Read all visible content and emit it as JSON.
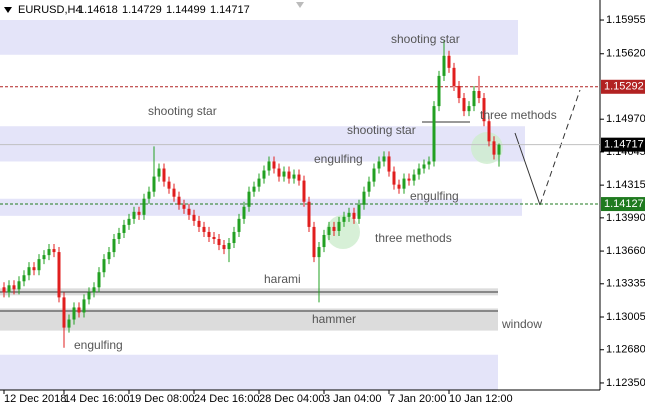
{
  "chart_data": {
    "type": "candlestick",
    "symbol": "EURUSD,H4",
    "header_prices": [
      1.14618,
      1.14729,
      1.14499,
      1.14717
    ],
    "up_color": "#22a022",
    "down_color": "#e01e1e",
    "categories": [
      "12 Dec 2018",
      null,
      null,
      null,
      null,
      null,
      null,
      null,
      null,
      null,
      null,
      null,
      "14 Dec 16:00",
      null,
      null,
      null,
      null,
      null,
      null,
      null,
      null,
      null,
      null,
      null,
      null,
      "19 Dec 08:00",
      null,
      null,
      null,
      null,
      null,
      null,
      null,
      null,
      null,
      null,
      null,
      null,
      "24 Dec 16:00",
      null,
      null,
      null,
      null,
      null,
      null,
      null,
      null,
      null,
      null,
      null,
      null,
      "28 Dec 04:00",
      null,
      null,
      null,
      null,
      null,
      null,
      null,
      null,
      null,
      null,
      null,
      null,
      "3 Jan 04:00",
      null,
      null,
      null,
      null,
      null,
      null,
      null,
      null,
      null,
      null,
      null,
      null,
      "7 Jan 20:00",
      null,
      null,
      null,
      null,
      null,
      null,
      null,
      null,
      null,
      null,
      null,
      "10 Jan 12:00",
      null,
      null,
      null,
      null,
      null,
      null,
      null,
      null,
      null,
      null
    ],
    "open": [
      1.133,
      1.1325,
      1.1332,
      1.1328,
      1.1336,
      1.1342,
      1.135,
      1.1347,
      1.1358,
      1.1362,
      1.1368,
      1.1365,
      1.132,
      1.129,
      1.1298,
      1.131,
      1.1305,
      1.1318,
      1.1325,
      1.133,
      1.1345,
      1.1358,
      1.1365,
      1.1378,
      1.1384,
      1.1392,
      1.1398,
      1.1405,
      1.1402,
      1.1418,
      1.1425,
      1.144,
      1.1448,
      1.1435,
      1.1428,
      1.142,
      1.1412,
      1.1408,
      1.1402,
      1.1396,
      1.139,
      1.1385,
      1.138,
      1.1378,
      1.1372,
      1.1368,
      1.1374,
      1.1385,
      1.1398,
      1.141,
      1.1425,
      1.143,
      1.1438,
      1.1446,
      1.1455,
      1.1448,
      1.144,
      1.1445,
      1.1438,
      1.1442,
      1.1436,
      1.1415,
      1.139,
      1.136,
      1.137,
      1.1382,
      1.139,
      1.1386,
      1.1395,
      1.14,
      1.1404,
      1.1398,
      1.1412,
      1.1425,
      1.1435,
      1.1448,
      1.1455,
      1.146,
      1.1445,
      1.1432,
      1.1428,
      1.1438,
      1.1436,
      1.1442,
      1.1448,
      1.1452,
      1.1455,
      1.151,
      1.154,
      1.156,
      1.1548,
      1.153,
      1.1518,
      1.1505,
      1.151,
      1.1525,
      1.1518,
      1.1495,
      1.1475,
      1.14618
    ],
    "high": [
      1.1335,
      1.1337,
      1.1337,
      1.1341,
      1.1347,
      1.1355,
      1.1355,
      1.1363,
      1.1367,
      1.1373,
      1.1373,
      1.137,
      1.1325,
      1.1303,
      1.1315,
      1.1315,
      1.1323,
      1.133,
      1.1335,
      1.135,
      1.1363,
      1.137,
      1.1383,
      1.1389,
      1.1397,
      1.1403,
      1.141,
      1.141,
      1.1423,
      1.143,
      1.147,
      1.1453,
      1.1453,
      1.144,
      1.1433,
      1.1425,
      1.1417,
      1.1413,
      1.1407,
      1.1401,
      1.1395,
      1.139,
      1.1385,
      1.1383,
      1.1377,
      1.1379,
      1.139,
      1.1403,
      1.1415,
      1.143,
      1.1435,
      1.1443,
      1.1451,
      1.146,
      1.146,
      1.1453,
      1.145,
      1.145,
      1.1447,
      1.1447,
      1.1441,
      1.142,
      1.1395,
      1.1375,
      1.1387,
      1.1395,
      1.1395,
      1.14,
      1.1405,
      1.1409,
      1.1409,
      1.1417,
      1.143,
      1.144,
      1.1453,
      1.146,
      1.1465,
      1.1465,
      1.145,
      1.1437,
      1.1443,
      1.1443,
      1.1447,
      1.1453,
      1.1457,
      1.146,
      1.1515,
      1.1545,
      1.1575,
      1.1565,
      1.1553,
      1.1535,
      1.1523,
      1.1515,
      1.153,
      1.154,
      1.1523,
      1.15,
      1.148,
      1.14729
    ],
    "low": [
      1.132,
      1.132,
      1.1323,
      1.1323,
      1.1331,
      1.1337,
      1.1342,
      1.1342,
      1.1353,
      1.1357,
      1.136,
      1.1315,
      1.127,
      1.1285,
      1.1293,
      1.13,
      1.13,
      1.1313,
      1.132,
      1.1325,
      1.134,
      1.1353,
      1.136,
      1.1373,
      1.1379,
      1.1387,
      1.1393,
      1.1397,
      1.1397,
      1.1413,
      1.142,
      1.1435,
      1.143,
      1.1423,
      1.1415,
      1.1407,
      1.1403,
      1.1397,
      1.1391,
      1.1385,
      1.138,
      1.1375,
      1.1373,
      1.1367,
      1.1363,
      1.1355,
      1.1369,
      1.138,
      1.1393,
      1.1405,
      1.142,
      1.1425,
      1.1433,
      1.1441,
      1.1443,
      1.1435,
      1.1435,
      1.1433,
      1.1433,
      1.1431,
      1.141,
      1.1385,
      1.1355,
      1.1315,
      1.1365,
      1.1377,
      1.1381,
      1.1381,
      1.139,
      1.1395,
      1.1393,
      1.1393,
      1.1407,
      1.142,
      1.143,
      1.1443,
      1.145,
      1.144,
      1.1427,
      1.1423,
      1.1423,
      1.1431,
      1.1431,
      1.1437,
      1.1443,
      1.1447,
      1.145,
      1.1505,
      1.1535,
      1.1543,
      1.1525,
      1.1513,
      1.15,
      1.15,
      1.1505,
      1.1513,
      1.149,
      1.147,
      1.1457,
      1.14499
    ],
    "close": [
      1.1325,
      1.1332,
      1.1328,
      1.1336,
      1.1342,
      1.135,
      1.1347,
      1.1358,
      1.1362,
      1.1368,
      1.1365,
      1.132,
      1.129,
      1.1298,
      1.131,
      1.1305,
      1.1318,
      1.1325,
      1.133,
      1.1345,
      1.1358,
      1.1365,
      1.1378,
      1.1384,
      1.1392,
      1.1398,
      1.1405,
      1.1402,
      1.1418,
      1.1425,
      1.144,
      1.1448,
      1.1435,
      1.1428,
      1.142,
      1.1412,
      1.1408,
      1.1402,
      1.1396,
      1.139,
      1.1385,
      1.138,
      1.1378,
      1.1372,
      1.1368,
      1.1374,
      1.1385,
      1.1398,
      1.141,
      1.1425,
      1.143,
      1.1438,
      1.1446,
      1.1455,
      1.1448,
      1.144,
      1.1445,
      1.1438,
      1.1442,
      1.1436,
      1.1415,
      1.139,
      1.136,
      1.137,
      1.1382,
      1.139,
      1.1386,
      1.1395,
      1.14,
      1.1404,
      1.1398,
      1.1412,
      1.1425,
      1.1435,
      1.1448,
      1.1455,
      1.146,
      1.1445,
      1.1432,
      1.1428,
      1.1438,
      1.1436,
      1.1442,
      1.1448,
      1.1452,
      1.1455,
      1.151,
      1.154,
      1.156,
      1.1548,
      1.153,
      1.1518,
      1.1505,
      1.151,
      1.1525,
      1.1518,
      1.1495,
      1.1475,
      1.14618,
      1.14717
    ],
    "ylim": [
      1.1228,
      1.16154
    ],
    "yticks": [
      1.15955,
      {
        "value": 1.1562,
        "label": "1.15620"
      },
      {
        "value": 1.1497,
        "label": "1.14970"
      },
      1.14645,
      1.14315,
      {
        "value": 1.1399,
        "label": "1.13990"
      },
      {
        "value": 1.1366,
        "label": "1.13660"
      },
      1.13335,
      1.13005,
      {
        "value": 1.1268,
        "label": "1.12680"
      },
      {
        "value": 1.1235,
        "label": "1.12350"
      }
    ],
    "levels": [
      {
        "value": 1.15292,
        "color": "#b22222",
        "dashed": true
      },
      {
        "value": 1.14717,
        "color": "#000000",
        "dashed": false
      },
      {
        "value": 1.14127,
        "color": "#1f7a1f",
        "dashed": true
      }
    ],
    "zones": [
      {
        "from": 1.15955,
        "to": 1.1561,
        "color": "#e4e4f9"
      },
      {
        "from": 1.149,
        "to": 1.1455,
        "color": "#e4e4f9"
      },
      {
        "from": 1.1418,
        "to": 1.1401,
        "color": "#e4e4f9"
      },
      {
        "from": 1.1263,
        "to": 1.1228,
        "color": "#e4e4f9"
      },
      {
        "from": 1.1329,
        "to": 1.1322,
        "color": "#dcdcdc"
      },
      {
        "from": 1.1309,
        "to": 1.1287,
        "color": "#dcdcdc"
      }
    ],
    "annotations": [
      "shooting star",
      "shooting star",
      "shooting star",
      "engulfing",
      "engulfing",
      "engulfing",
      "three methods",
      "three methods",
      "harami",
      "hammer",
      "window"
    ]
  }
}
